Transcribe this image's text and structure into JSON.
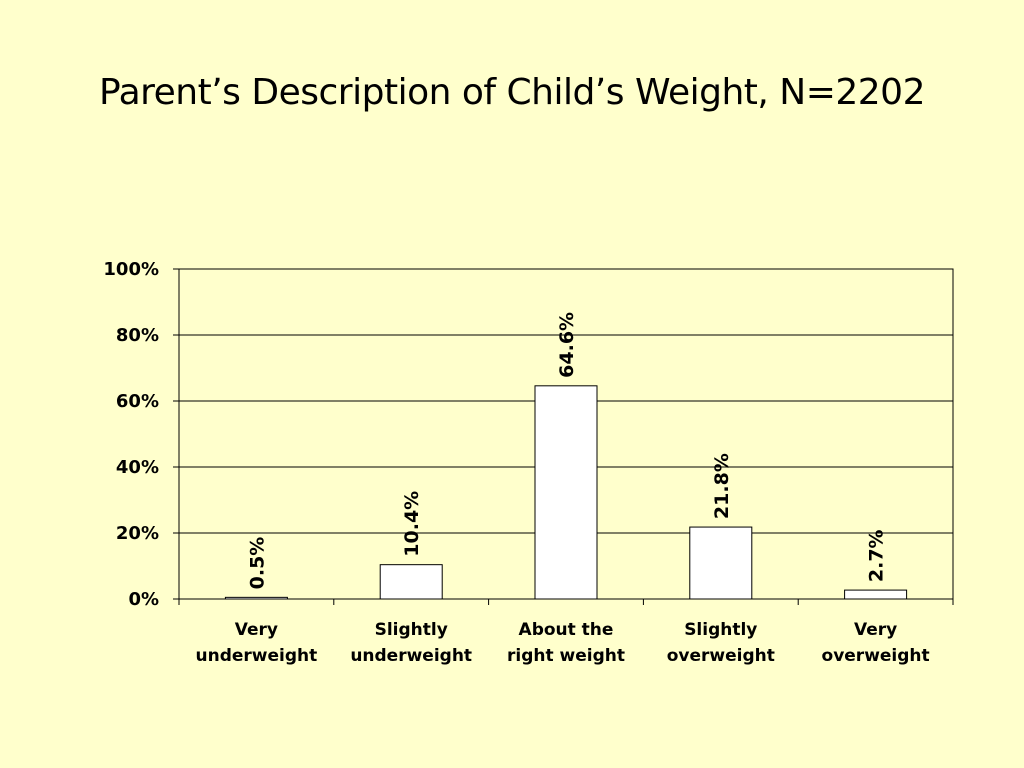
{
  "chart_data": {
    "type": "bar",
    "title": "Parent’s Description of Child’s Weight, N=2202",
    "categories": [
      [
        "Very",
        "underweight"
      ],
      [
        "Slightly",
        "underweight"
      ],
      [
        "About the",
        "right weight"
      ],
      [
        "Slightly",
        "overweight"
      ],
      [
        "Very",
        "overweight"
      ]
    ],
    "values": [
      0.5,
      10.4,
      64.6,
      21.8,
      2.7
    ],
    "data_labels": [
      "0.5%",
      "10.4%",
      "64.6%",
      "21.8%",
      "2.7%"
    ],
    "ylim": [
      0,
      100
    ],
    "yticks": [
      0,
      20,
      40,
      60,
      80,
      100
    ],
    "ytick_labels": [
      "0%",
      "20%",
      "40%",
      "60%",
      "80%",
      "100%"
    ],
    "xlabel": "",
    "ylabel": "",
    "grid": true,
    "legend": "none",
    "colors": {
      "background": "#FFFFCC",
      "bar_fill": "#FFFFFF",
      "bar_stroke": "#000000",
      "axis": "#000000",
      "grid": "#000000"
    }
  }
}
